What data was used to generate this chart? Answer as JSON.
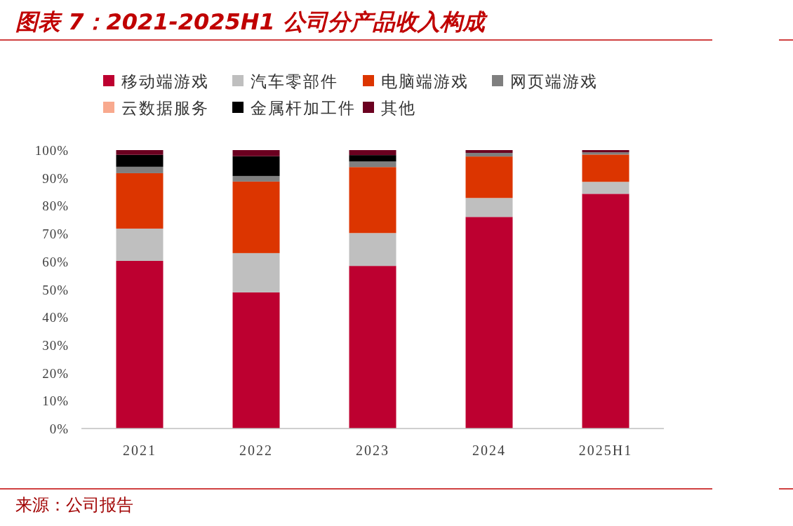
{
  "chart_data": {
    "type": "bar",
    "title": "图表 7：2021-2025H1 公司分产品收入构成",
    "categories": [
      "2021",
      "2022",
      "2023",
      "2024",
      "2025H1"
    ],
    "stacked": true,
    "legend": "top",
    "grid": false,
    "ylim": [
      0,
      100
    ],
    "yticks": [
      {
        "value": 0,
        "label": "0%"
      },
      {
        "value": 10,
        "label": "10%"
      },
      {
        "value": 20,
        "label": "20%"
      },
      {
        "value": 30,
        "label": "30%"
      },
      {
        "value": 40,
        "label": "40%"
      },
      {
        "value": 50,
        "label": "50%"
      },
      {
        "value": 60,
        "label": "60%"
      },
      {
        "value": 70,
        "label": "70%"
      },
      {
        "value": 80,
        "label": "80%"
      },
      {
        "value": 90,
        "label": "90%"
      },
      {
        "value": 100,
        "label": "100%"
      }
    ],
    "series": [
      {
        "name": "移动端游戏",
        "color": "#bd0030",
        "values": [
          60.2,
          48.9,
          58.4,
          76.0,
          84.3
        ]
      },
      {
        "name": "汽车零部件",
        "color": "#bfbfbf",
        "values": [
          11.6,
          14.1,
          11.8,
          6.8,
          4.3
        ]
      },
      {
        "name": "电脑端游戏",
        "color": "#dc3500",
        "values": [
          19.9,
          25.7,
          23.7,
          14.9,
          9.8
        ]
      },
      {
        "name": "网页端游戏",
        "color": "#7f7f7f",
        "values": [
          2.3,
          2.0,
          2.0,
          1.3,
          0.8
        ]
      },
      {
        "name": "云数据服务",
        "color": "#f8a98e",
        "values": [
          0,
          0,
          0,
          0,
          0
        ]
      },
      {
        "name": "金属杆加工件",
        "color": "#000000",
        "values": [
          4.3,
          7.1,
          2.3,
          0,
          0
        ]
      },
      {
        "name": "其他",
        "color": "#6b0020",
        "values": [
          1.7,
          2.2,
          1.8,
          1.0,
          0.8
        ]
      }
    ],
    "annotations": [
      "来源：公司报告"
    ]
  }
}
